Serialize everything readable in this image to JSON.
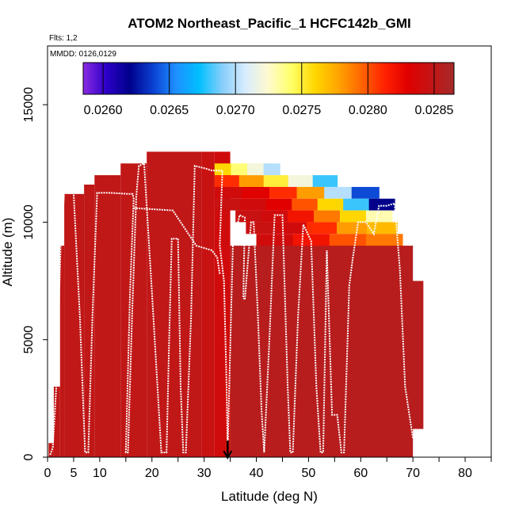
{
  "chart_data": {
    "type": "heatmap",
    "title": "ATOM2 Northeast_Pacific_1 HCFC142b_GMI",
    "flights_label": "Flts: 1,2",
    "mmdd_label": "MMDD: 0126,0129",
    "xlabel": "Latitude (deg N)",
    "ylabel": "Altitude (m)",
    "xlim": [
      0,
      85
    ],
    "ylim": [
      0,
      17500
    ],
    "x_ticks": [
      0,
      5,
      10,
      20,
      30,
      40,
      50,
      60,
      70,
      80
    ],
    "x_tick_labels": [
      "0",
      "5",
      "10",
      "20",
      "30",
      "40",
      "50",
      "60",
      "70",
      "80"
    ],
    "y_ticks": [
      0,
      5000,
      10000,
      15000
    ],
    "y_tick_labels": [
      "0",
      "5000",
      "10000",
      "15000"
    ],
    "colorbar": {
      "min": 0.02585,
      "max": 0.02865,
      "ticks": [
        0.026,
        0.0265,
        0.027,
        0.0275,
        0.028,
        0.0285
      ],
      "tick_labels": [
        "0.0260",
        "0.0265",
        "0.0270",
        "0.0275",
        "0.0280",
        "0.0285"
      ],
      "colors": [
        "#8a2be2",
        "#2c00c8",
        "#00008b",
        "#0a3fd0",
        "#1e90ff",
        "#00bfff",
        "#87cefa",
        "#d8ecff",
        "#fffacd",
        "#ffff66",
        "#ffd700",
        "#ffa500",
        "#ff6600",
        "#ff2200",
        "#e00000",
        "#c41414",
        "#a52a2a"
      ]
    },
    "base_value": 0.02855,
    "columns": [
      {
        "lat_start": 0.2,
        "lat_end": 1.2,
        "top": 600,
        "value": 0.0285
      },
      {
        "lat_start": 1.2,
        "lat_end": 2.4,
        "top": 3000,
        "value": 0.0285
      },
      {
        "lat_start": 2.4,
        "lat_end": 3.2,
        "top": 9000,
        "value": 0.0285
      },
      {
        "lat_start": 3.2,
        "lat_end": 7.0,
        "top": 11200,
        "value": 0.0285
      },
      {
        "lat_start": 7.0,
        "lat_end": 9.0,
        "top": 11600,
        "value": 0.0285
      },
      {
        "lat_start": 9.0,
        "lat_end": 14.0,
        "top": 12000,
        "value": 0.0285
      },
      {
        "lat_start": 14.0,
        "lat_end": 19.0,
        "top": 12500,
        "value": 0.0285
      },
      {
        "lat_start": 19.0,
        "lat_end": 29.5,
        "top": 13000,
        "value": 0.0285
      },
      {
        "lat_start": 29.5,
        "lat_end": 32.0,
        "top": 13000,
        "value": 0.02845
      },
      {
        "lat_start": 32.0,
        "lat_end": 35.0,
        "top": 13000,
        "value": 0.0284
      }
    ],
    "upper_layers": [
      {
        "lat_start": 32.0,
        "lat_end": 44.5,
        "bottom": 12000,
        "top": 12500,
        "values": [
          0.0276,
          0.0274,
          0.0272,
          0.027
        ]
      },
      {
        "lat_start": 32.0,
        "lat_end": 55.5,
        "bottom": 11500,
        "top": 12000,
        "values": [
          0.0281,
          0.0278,
          0.0275,
          0.0272,
          0.0268
        ]
      },
      {
        "lat_start": 32.0,
        "lat_end": 63.5,
        "bottom": 11000,
        "top": 11500,
        "values": [
          0.0284,
          0.0283,
          0.0281,
          0.0278,
          0.027,
          0.0264
        ]
      },
      {
        "lat_start": 32.0,
        "lat_end": 66.5,
        "bottom": 10500,
        "top": 11000,
        "values": [
          0.02845,
          0.0284,
          0.0283,
          0.028,
          0.0276,
          0.0268,
          0.0262
        ]
      },
      {
        "lat_start": 36.0,
        "lat_end": 66.0,
        "bottom": 10000,
        "top": 10500,
        "values": [
          0.02845,
          0.0284,
          0.0282,
          0.0279,
          0.0276,
          0.0273
        ]
      },
      {
        "lat_start": 38.0,
        "lat_end": 67.0,
        "bottom": 9500,
        "top": 10000,
        "values": [
          0.02845,
          0.0284,
          0.0281,
          0.0278,
          0.0277
        ]
      },
      {
        "lat_start": 40.0,
        "lat_end": 68.0,
        "bottom": 8500,
        "top": 9500,
        "values": [
          0.0284,
          0.0282,
          0.028,
          0.0279
        ]
      },
      {
        "lat_start": 44.0,
        "lat_end": 69.0,
        "bottom": 7500,
        "top": 8500,
        "values": [
          0.02845,
          0.0284,
          0.0283
        ]
      }
    ],
    "flight_track": [
      [
        0.5,
        100
      ],
      [
        1.0,
        400
      ],
      [
        1.8,
        3500
      ],
      [
        2.5,
        9000
      ],
      [
        3.2,
        11250
      ],
      [
        5.0,
        11250
      ],
      [
        6.2,
        6000
      ],
      [
        7.2,
        200
      ],
      [
        7.8,
        200
      ],
      [
        8.6,
        6000
      ],
      [
        9.5,
        11250
      ],
      [
        12.0,
        11250
      ],
      [
        15.5,
        11200
      ],
      [
        16.3,
        11200
      ],
      [
        16.5,
        11000
      ],
      [
        15.8,
        7000
      ],
      [
        15.0,
        200
      ],
      [
        15.4,
        200
      ],
      [
        16.2,
        6000
      ],
      [
        17.0,
        11100
      ],
      [
        17.5,
        12400
      ],
      [
        18.5,
        12500
      ],
      [
        20.0,
        7000
      ],
      [
        21.8,
        200
      ],
      [
        22.8,
        200
      ],
      [
        23.3,
        5000
      ],
      [
        23.8,
        9300
      ],
      [
        25.0,
        9300
      ],
      [
        25.5,
        3000
      ],
      [
        26.0,
        200
      ],
      [
        26.5,
        200
      ],
      [
        27.5,
        6000
      ],
      [
        28.2,
        12400
      ],
      [
        30.0,
        12300
      ],
      [
        31.5,
        12200
      ],
      [
        33.5,
        12200
      ],
      [
        33.0,
        9000
      ],
      [
        33.8,
        7500
      ],
      [
        34.3,
        3000
      ],
      [
        34.5,
        200
      ],
      [
        34.8,
        3000
      ],
      [
        35.5,
        9000
      ],
      [
        36.8,
        10300
      ],
      [
        37.8,
        10200
      ],
      [
        37.5,
        6800
      ],
      [
        37.8,
        6700
      ],
      [
        39.0,
        10000
      ],
      [
        39.5,
        10000
      ],
      [
        40.3,
        6000
      ],
      [
        41.0,
        2000
      ],
      [
        41.5,
        200
      ],
      [
        42.5,
        5000
      ],
      [
        43.5,
        10300
      ],
      [
        45.0,
        10300
      ],
      [
        46.0,
        3000
      ],
      [
        46.5,
        200
      ],
      [
        47.0,
        200
      ],
      [
        48.0,
        6000
      ],
      [
        49.0,
        9900
      ],
      [
        50.5,
        9200
      ],
      [
        51.5,
        3000
      ],
      [
        52.3,
        200
      ],
      [
        52.8,
        200
      ],
      [
        53.5,
        8800
      ],
      [
        54.5,
        1800
      ],
      [
        55.5,
        1800
      ],
      [
        56.3,
        200
      ],
      [
        56.8,
        200
      ],
      [
        57.8,
        7300
      ],
      [
        58.5,
        8500
      ],
      [
        59.5,
        10000
      ],
      [
        61.0,
        10000
      ],
      [
        62.5,
        9500
      ],
      [
        63.5,
        10700
      ],
      [
        65.0,
        10700
      ],
      [
        66.5,
        10800
      ],
      [
        67.5,
        8000
      ],
      [
        68.5,
        3000
      ],
      [
        70.0,
        800
      ]
    ],
    "track_segment_2": [
      [
        16.5,
        10600
      ],
      [
        24.0,
        10500
      ],
      [
        28.5,
        9000
      ],
      [
        31.5,
        8800
      ],
      [
        32.5,
        8500
      ],
      [
        33.0,
        7800
      ]
    ],
    "marker_latitude": 34.5
  }
}
